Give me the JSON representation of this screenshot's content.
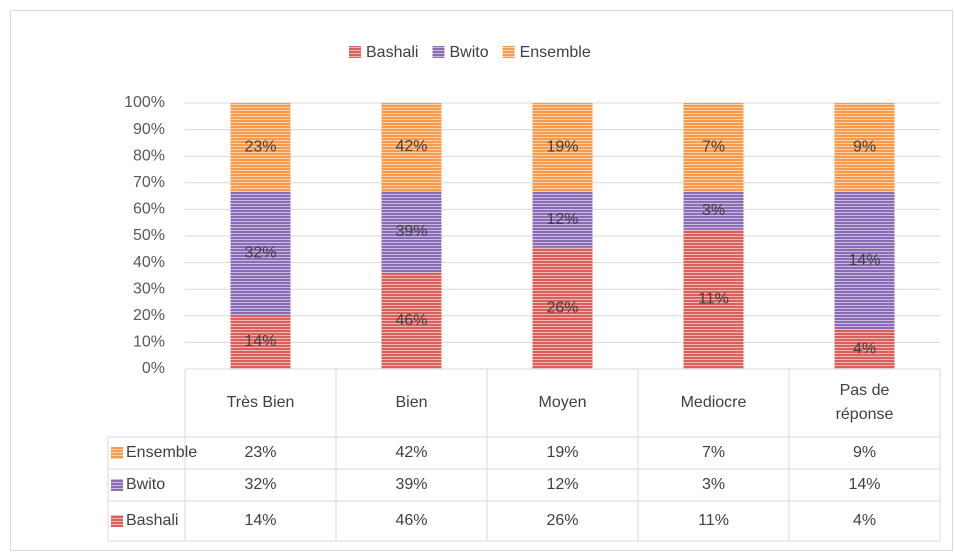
{
  "chart_data": {
    "type": "stacked_percent_bar",
    "categories": [
      "Très Bien",
      "Bien",
      "Moyen",
      "Mediocre",
      "Pas de réponse"
    ],
    "series": [
      {
        "name": "Bashali",
        "color": "#d9605a",
        "values": [
          14,
          46,
          26,
          11,
          4
        ],
        "value_labels": [
          "14%",
          "46%",
          "26%",
          "11%",
          "4%"
        ]
      },
      {
        "name": "Bwito",
        "color": "#8a6bb5",
        "values": [
          32,
          39,
          12,
          3,
          14
        ],
        "value_labels": [
          "32%",
          "39%",
          "12%",
          "3%",
          "14%"
        ]
      },
      {
        "name": "Ensemble",
        "color": "#f79a4a",
        "values": [
          23,
          42,
          19,
          7,
          9
        ],
        "value_labels": [
          "23%",
          "42%",
          "19%",
          "7%",
          "9%"
        ]
      }
    ],
    "ylim": [
      0,
      100
    ],
    "yticks": [
      {
        "value": 0,
        "label": "0%"
      },
      {
        "value": 10,
        "label": "10%"
      },
      {
        "value": 20,
        "label": "20%"
      },
      {
        "value": 30,
        "label": "30%"
      },
      {
        "value": 40,
        "label": "40%"
      },
      {
        "value": 50,
        "label": "50%"
      },
      {
        "value": 60,
        "label": "60%"
      },
      {
        "value": 70,
        "label": "70%"
      },
      {
        "value": 80,
        "label": "80%"
      },
      {
        "value": 90,
        "label": "90%"
      },
      {
        "value": 100,
        "label": "100%"
      }
    ],
    "grid": true,
    "legend": "top",
    "data_table": true
  }
}
